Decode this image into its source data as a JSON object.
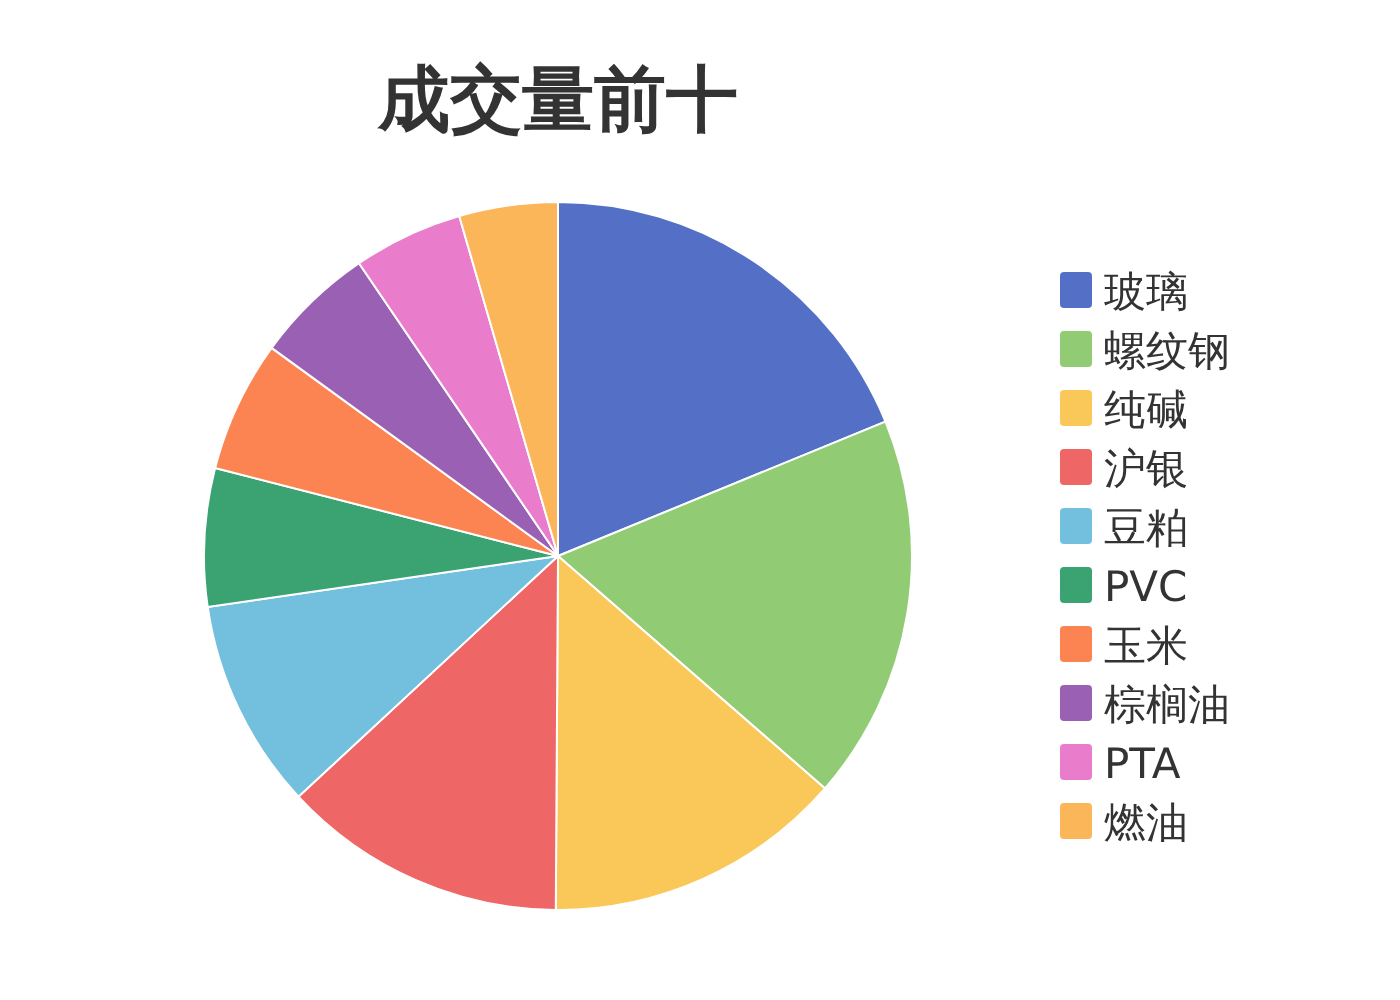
{
  "chart_data": {
    "type": "pie",
    "title": "成交量前十",
    "categories": [
      "玻璃",
      "螺纹钢",
      "纯碱",
      "沪银",
      "豆粕",
      "PVC",
      "玉米",
      "棕榈油",
      "PTA",
      "燃油"
    ],
    "values": [
      18.8,
      17.6,
      13.7,
      13.0,
      9.6,
      6.3,
      6.0,
      5.5,
      5.0,
      4.5
    ],
    "colors": [
      "#5470c6",
      "#91cc75",
      "#fac858",
      "#ee6666",
      "#73c0de",
      "#3ba272",
      "#fc8452",
      "#9a60b4",
      "#ea7ccc",
      "#fcb65a"
    ],
    "legend": "right"
  }
}
